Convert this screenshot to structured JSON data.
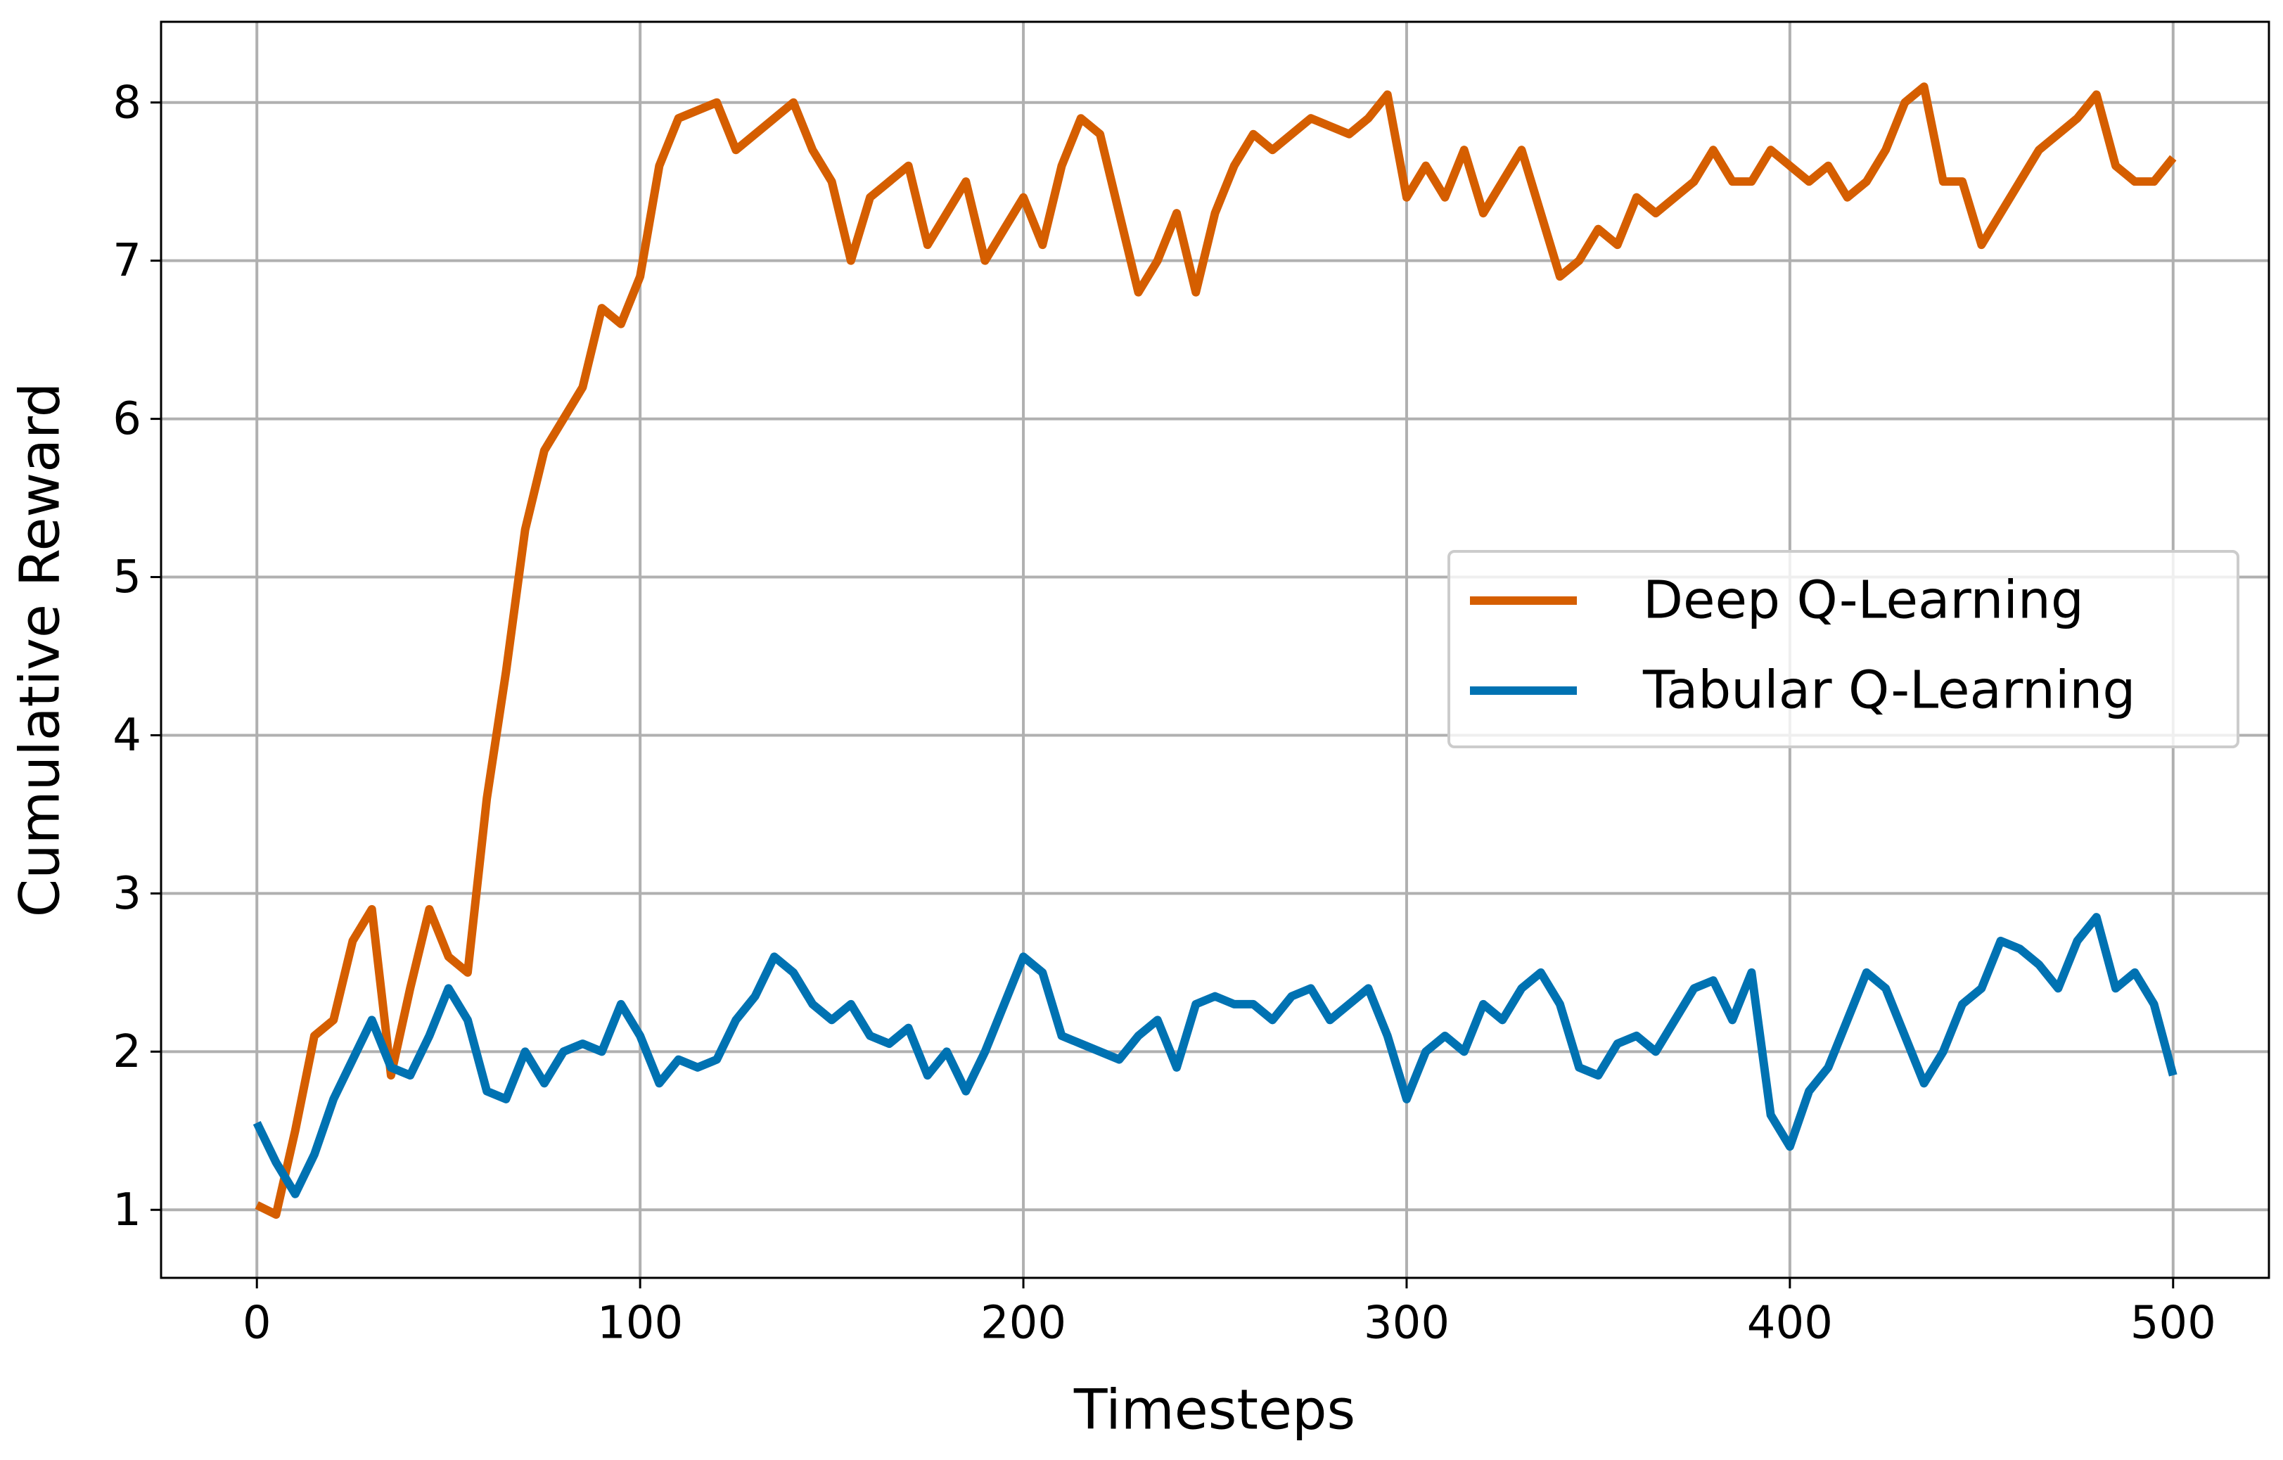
{
  "chart_data": {
    "type": "line",
    "xlabel": "Timesteps",
    "ylabel": "Cumulative Reward",
    "x": [
      0,
      5,
      10,
      15,
      20,
      25,
      30,
      35,
      40,
      45,
      50,
      55,
      60,
      65,
      70,
      75,
      80,
      85,
      90,
      95,
      100,
      105,
      110,
      115,
      120,
      125,
      130,
      135,
      140,
      145,
      150,
      155,
      160,
      165,
      170,
      175,
      180,
      185,
      190,
      195,
      200,
      205,
      210,
      215,
      220,
      225,
      230,
      235,
      240,
      245,
      250,
      255,
      260,
      265,
      270,
      275,
      280,
      285,
      290,
      295,
      300,
      305,
      310,
      315,
      320,
      325,
      330,
      335,
      340,
      345,
      350,
      355,
      360,
      365,
      370,
      375,
      380,
      385,
      390,
      395,
      400,
      405,
      410,
      415,
      420,
      425,
      430,
      435,
      440,
      445,
      450,
      455,
      460,
      465,
      470,
      475,
      480,
      485,
      490,
      495,
      500
    ],
    "series": [
      {
        "name": "Deep Q-Learning",
        "color": "#d55e00",
        "values": [
          1.03,
          0.97,
          1.5,
          2.1,
          2.2,
          2.7,
          2.9,
          1.85,
          2.4,
          2.9,
          2.6,
          2.5,
          3.6,
          4.4,
          5.3,
          5.8,
          6.0,
          6.2,
          6.7,
          6.6,
          6.9,
          7.6,
          7.9,
          7.95,
          8.0,
          7.7,
          7.8,
          7.9,
          8.0,
          7.7,
          7.5,
          7.0,
          7.4,
          7.5,
          7.6,
          7.1,
          7.3,
          7.5,
          7.0,
          7.2,
          7.4,
          7.1,
          7.6,
          7.9,
          7.8,
          7.3,
          6.8,
          7.0,
          7.3,
          6.8,
          7.3,
          7.6,
          7.8,
          7.7,
          7.8,
          7.9,
          7.85,
          7.8,
          7.9,
          8.05,
          7.4,
          7.6,
          7.4,
          7.7,
          7.3,
          7.5,
          7.7,
          7.3,
          6.9,
          7.0,
          7.2,
          7.1,
          7.4,
          7.3,
          7.4,
          7.5,
          7.7,
          7.5,
          7.5,
          7.7,
          7.6,
          7.5,
          7.6,
          7.4,
          7.5,
          7.7,
          8.0,
          8.1,
          7.5,
          7.5,
          7.1,
          7.3,
          7.5,
          7.7,
          7.8,
          7.9,
          8.05,
          7.6,
          7.5,
          7.5,
          7.65
        ]
      },
      {
        "name": "Tabular Q-Learning",
        "color": "#0072b2",
        "values": [
          1.55,
          1.3,
          1.1,
          1.35,
          1.7,
          1.95,
          2.2,
          1.9,
          1.85,
          2.1,
          2.4,
          2.2,
          1.75,
          1.7,
          2.0,
          1.8,
          2.0,
          2.05,
          2.0,
          2.3,
          2.1,
          1.8,
          1.95,
          1.9,
          1.95,
          2.2,
          2.35,
          2.6,
          2.5,
          2.3,
          2.2,
          2.3,
          2.1,
          2.05,
          2.15,
          1.85,
          2.0,
          1.75,
          2.0,
          2.3,
          2.6,
          2.5,
          2.1,
          2.05,
          2.0,
          1.95,
          2.1,
          2.2,
          1.9,
          2.3,
          2.35,
          2.3,
          2.3,
          2.2,
          2.35,
          2.4,
          2.2,
          2.3,
          2.4,
          2.1,
          1.7,
          2.0,
          2.1,
          2.0,
          2.3,
          2.2,
          2.4,
          2.5,
          2.3,
          1.9,
          1.85,
          2.05,
          2.1,
          2.0,
          2.2,
          2.4,
          2.45,
          2.2,
          2.5,
          1.6,
          1.4,
          1.75,
          1.9,
          2.2,
          2.5,
          2.4,
          2.1,
          1.8,
          2.0,
          2.3,
          2.4,
          2.7,
          2.65,
          2.55,
          2.4,
          2.7,
          2.85,
          2.4,
          2.5,
          2.3,
          1.85
        ]
      }
    ],
    "xlim": [
      -25,
      525
    ],
    "ylim": [
      0.57,
      8.51
    ],
    "xticks": [
      0,
      100,
      200,
      300,
      400,
      500
    ],
    "yticks": [
      1,
      2,
      3,
      4,
      5,
      6,
      7,
      8
    ],
    "grid": true,
    "legend": "center right"
  }
}
